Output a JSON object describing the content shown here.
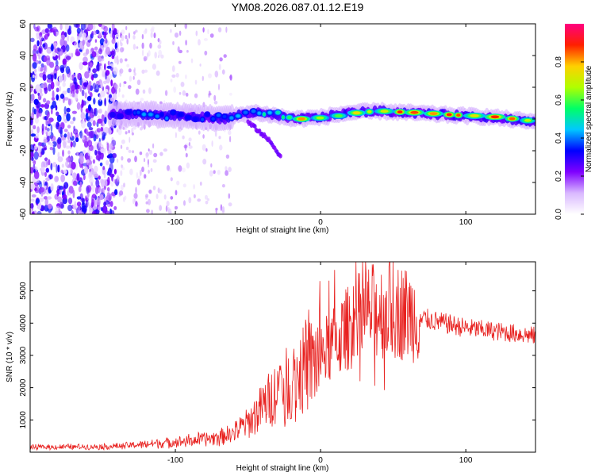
{
  "figure": {
    "title": "YM08.2026.087.01.12.E19"
  },
  "chart_data": [
    {
      "type": "heatmap",
      "title": "YM08.2026.087.01.12.E19",
      "xlabel": "Height of straight line (km)",
      "ylabel": "Frequency (Hz)",
      "xlim": [
        -200,
        148
      ],
      "ylim": [
        -60,
        60
      ],
      "xticks": [
        -100,
        0,
        100
      ],
      "yticks": [
        -60,
        -40,
        -20,
        0,
        20,
        40,
        60
      ],
      "colorbar": {
        "label": "Normalized spectral amplitude",
        "range": [
          0,
          1
        ],
        "ticks": [
          0.0,
          0.2,
          0.4,
          0.6,
          0.8
        ],
        "colormap": [
          "#ffffff",
          "#d9b8ff",
          "#7f00ff",
          "#0000ff",
          "#00c8ff",
          "#00ff66",
          "#b0ff00",
          "#ffd000",
          "#ff2000",
          "#ff0080"
        ]
      },
      "ridge": {
        "description": "dominant frequency track",
        "x": [
          -145,
          -120,
          -100,
          -80,
          -65,
          -55,
          -45,
          -30,
          -20,
          0,
          20,
          40,
          60,
          80,
          100,
          120,
          148
        ],
        "frequency": [
          3,
          3,
          2,
          1,
          0,
          3,
          4,
          2,
          0,
          1,
          4,
          5,
          4,
          3,
          2,
          1,
          -2
        ],
        "peak_amplitude": [
          0.35,
          0.45,
          0.4,
          0.4,
          0.45,
          0.5,
          0.5,
          0.6,
          0.85,
          0.75,
          0.8,
          0.95,
          0.95,
          0.9,
          0.95,
          0.9,
          0.85
        ]
      },
      "branch": {
        "description": "downward streak below the track",
        "x": [
          -50,
          -42,
          -35,
          -27
        ],
        "frequency": [
          -2,
          -8,
          -14,
          -24
        ]
      },
      "noise_region": {
        "description": "scattered low-amplitude speckle",
        "dense_x_range": [
          -200,
          -140
        ],
        "sparse_x_range": [
          -140,
          -60
        ]
      }
    },
    {
      "type": "line",
      "xlabel": "Height of straight line (km)",
      "ylabel": "SNR (10 * v/v)",
      "xlim": [
        -200,
        148
      ],
      "ylim": [
        0,
        5900
      ],
      "xticks": [
        -100,
        0,
        100
      ],
      "yticks": [
        1000,
        2000,
        3000,
        4000,
        5000
      ],
      "series": [
        {
          "name": "SNR",
          "color": "#e8211f",
          "x": [
            -200,
            -180,
            -160,
            -140,
            -120,
            -100,
            -80,
            -70,
            -60,
            -50,
            -40,
            -30,
            -20,
            -10,
            0,
            10,
            20,
            30,
            40,
            50,
            60,
            70,
            80,
            90,
            100,
            110,
            120,
            130,
            140,
            148
          ],
          "values": [
            150,
            160,
            170,
            180,
            250,
            320,
            400,
            480,
            600,
            900,
            1400,
            1900,
            2200,
            2600,
            3000,
            3400,
            3900,
            4300,
            4400,
            4400,
            4300,
            4150,
            4050,
            3950,
            3850,
            3800,
            3750,
            3700,
            3650,
            3600
          ]
        }
      ]
    }
  ]
}
